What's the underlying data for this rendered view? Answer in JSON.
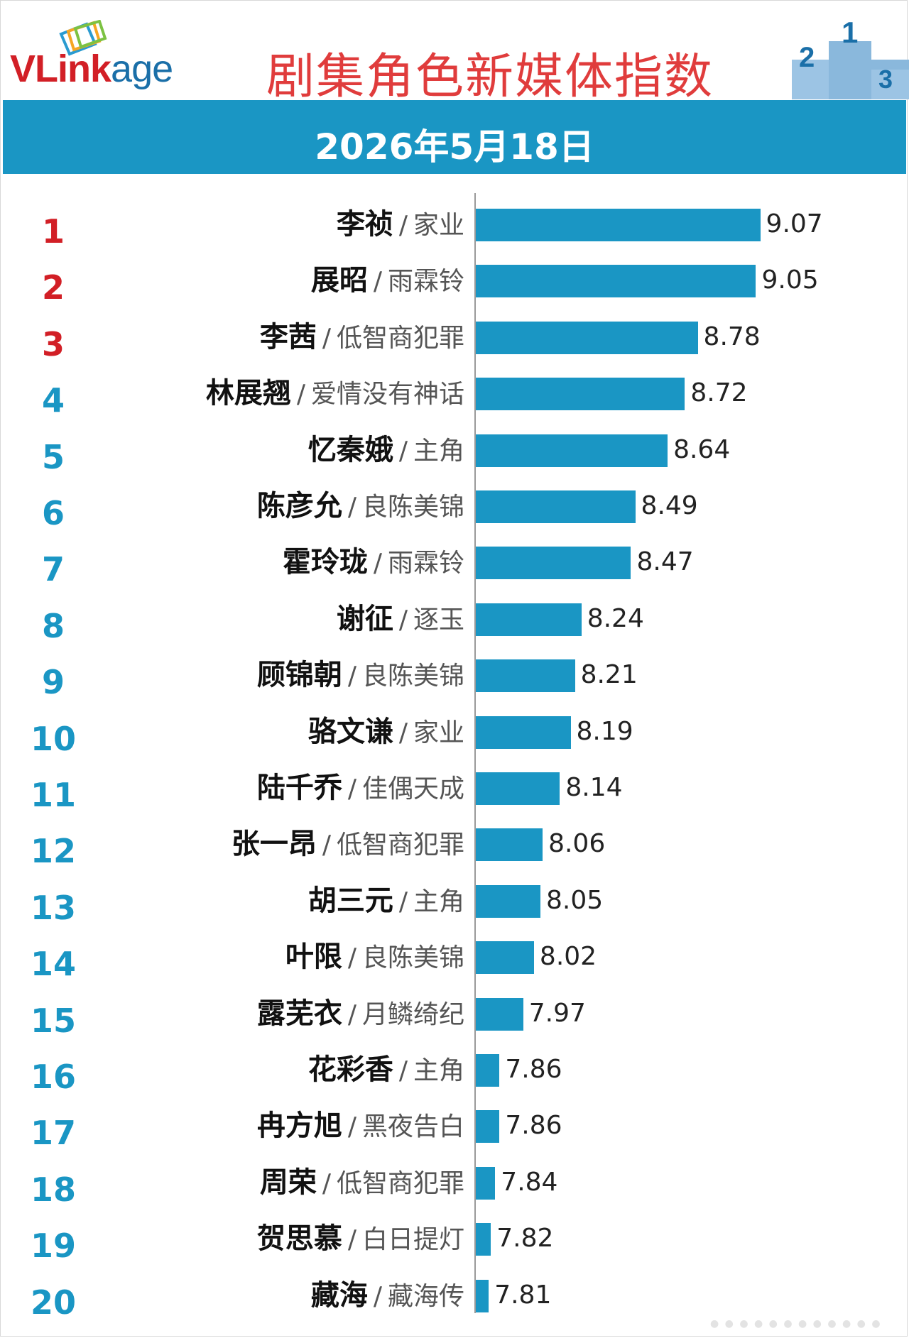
{
  "header": {
    "logo_text": "VLinkage",
    "title": "剧集角色新媒体指数",
    "date": "2026年5月18日"
  },
  "colors": {
    "bar": "#1a96c4",
    "rank_top": "#d21f26",
    "rank_other": "#1a96c4",
    "title": "#e03c3c"
  },
  "chart_data": {
    "type": "bar",
    "orientation": "horizontal",
    "title": "剧集角色新媒体指数",
    "subtitle": "2026年5月18日",
    "xlim": [
      7.75,
      9.2
    ],
    "grid": false,
    "rows": [
      {
        "rank": "1",
        "character": "李祯",
        "show": "家业",
        "value": 9.07,
        "value_label": "9.07"
      },
      {
        "rank": "2",
        "character": "展昭",
        "show": "雨霖铃",
        "value": 9.05,
        "value_label": "9.05"
      },
      {
        "rank": "3",
        "character": "李茜",
        "show": "低智商犯罪",
        "value": 8.78,
        "value_label": "8.78"
      },
      {
        "rank": "4",
        "character": "林展翘",
        "show": "爱情没有神话",
        "value": 8.72,
        "value_label": "8.72"
      },
      {
        "rank": "5",
        "character": "忆秦娥",
        "show": "主角",
        "value": 8.64,
        "value_label": "8.64"
      },
      {
        "rank": "6",
        "character": "陈彦允",
        "show": "良陈美锦",
        "value": 8.49,
        "value_label": "8.49"
      },
      {
        "rank": "7",
        "character": "霍玲珑",
        "show": "雨霖铃",
        "value": 8.47,
        "value_label": "8.47"
      },
      {
        "rank": "8",
        "character": "谢征",
        "show": "逐玉",
        "value": 8.24,
        "value_label": "8.24"
      },
      {
        "rank": "9",
        "character": "顾锦朝",
        "show": "良陈美锦",
        "value": 8.21,
        "value_label": "8.21"
      },
      {
        "rank": "10",
        "character": "骆文谦",
        "show": "家业",
        "value": 8.19,
        "value_label": "8.19"
      },
      {
        "rank": "11",
        "character": "陆千乔",
        "show": "佳偶天成",
        "value": 8.14,
        "value_label": "8.14"
      },
      {
        "rank": "12",
        "character": "张一昂",
        "show": "低智商犯罪",
        "value": 8.06,
        "value_label": "8.06"
      },
      {
        "rank": "13",
        "character": "胡三元",
        "show": "主角",
        "value": 8.05,
        "value_label": "8.05"
      },
      {
        "rank": "14",
        "character": "叶限",
        "show": "良陈美锦",
        "value": 8.02,
        "value_label": "8.02"
      },
      {
        "rank": "15",
        "character": "露芜衣",
        "show": "月鳞绮纪",
        "value": 7.97,
        "value_label": "7.97"
      },
      {
        "rank": "16",
        "character": "花彩香",
        "show": "主角",
        "value": 7.86,
        "value_label": "7.86"
      },
      {
        "rank": "17",
        "character": "冉方旭",
        "show": "黑夜告白",
        "value": 7.86,
        "value_label": "7.86"
      },
      {
        "rank": "18",
        "character": "周荣",
        "show": "低智商犯罪",
        "value": 7.84,
        "value_label": "7.84"
      },
      {
        "rank": "19",
        "character": "贺思慕",
        "show": "白日提灯",
        "value": 7.82,
        "value_label": "7.82"
      },
      {
        "rank": "20",
        "character": "藏海",
        "show": "藏海传",
        "value": 7.81,
        "value_label": "7.81"
      }
    ]
  }
}
